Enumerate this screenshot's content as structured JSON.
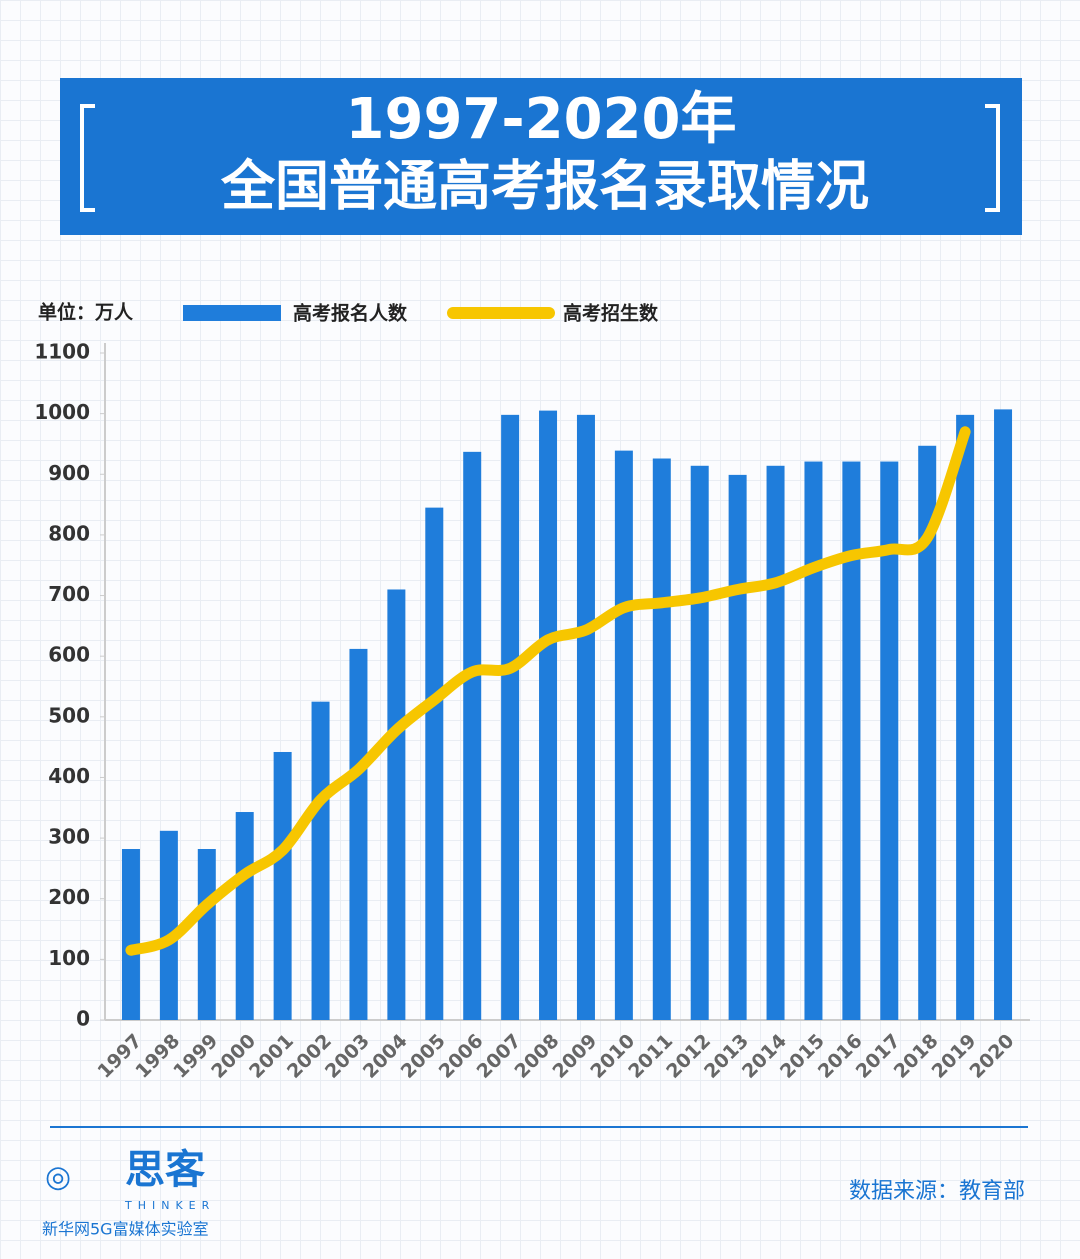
{
  "chart_data": {
    "type": "bar-line",
    "title_lines": [
      "1997-2020年",
      "全国普通高考报名录取情况"
    ],
    "unit_label": "单位：万人",
    "categories": [
      "1997",
      "1998",
      "1999",
      "2000",
      "2001",
      "2002",
      "2003",
      "2004",
      "2005",
      "2006",
      "2007",
      "2008",
      "2009",
      "2010",
      "2011",
      "2012",
      "2013",
      "2014",
      "2015",
      "2016",
      "2017",
      "2018",
      "2019",
      "2020"
    ],
    "series": [
      {
        "name": "高考报名人数",
        "type": "bar",
        "color": "#1f7ddb",
        "values": [
          282,
          312,
          282,
          343,
          442,
          525,
          612,
          710,
          845,
          937,
          998,
          1005,
          998,
          939,
          926,
          914,
          899,
          914,
          921,
          921,
          921,
          947,
          998,
          1007
        ]
      },
      {
        "name": "高考招生数",
        "type": "line",
        "color": "#f7c600",
        "values": [
          115,
          132,
          190,
          240,
          280,
          363,
          413,
          478,
          528,
          574,
          580,
          627,
          643,
          680,
          688,
          696,
          710,
          721,
          746,
          766,
          776,
          795,
          970,
          null
        ]
      }
    ],
    "ylim": [
      0,
      1100
    ],
    "yticks": [
      0,
      100,
      200,
      300,
      400,
      500,
      600,
      700,
      800,
      900,
      1000,
      1100
    ],
    "brand": "思客",
    "brand_sub": "THINKER",
    "org": "新华网5G富媒体实验室",
    "source": "数据来源：教育部"
  }
}
